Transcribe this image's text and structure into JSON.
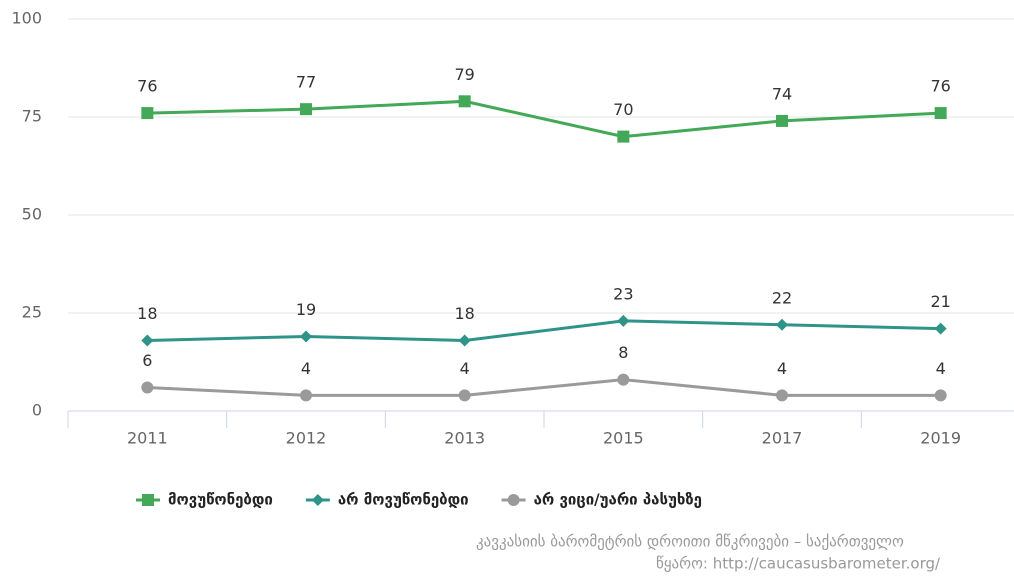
{
  "chart_data": {
    "type": "line",
    "categories": [
      "2011",
      "2012",
      "2013",
      "2015",
      "2017",
      "2019"
    ],
    "series": [
      {
        "name": "მოვუწონებდი",
        "color": "#43a857",
        "marker": "square",
        "values": [
          76,
          77,
          79,
          70,
          74,
          76
        ]
      },
      {
        "name": "არ მოვუწონებდი",
        "color": "#2f9488",
        "marker": "diamond",
        "values": [
          18,
          19,
          18,
          23,
          22,
          21
        ]
      },
      {
        "name": "არ ვიცი/უარი პასუხზე",
        "color": "#9a9a9a",
        "marker": "circle",
        "values": [
          6,
          4,
          4,
          8,
          4,
          4
        ]
      }
    ],
    "ylim": [
      0,
      100
    ],
    "yticks": [
      0,
      25,
      50,
      75,
      100
    ],
    "grid": true,
    "credits": [
      "კავკასიის ბარომეტრის დროითი მწკრივები – საქართველო",
      "წყარო: http://caucasusbarometer.org/"
    ]
  }
}
